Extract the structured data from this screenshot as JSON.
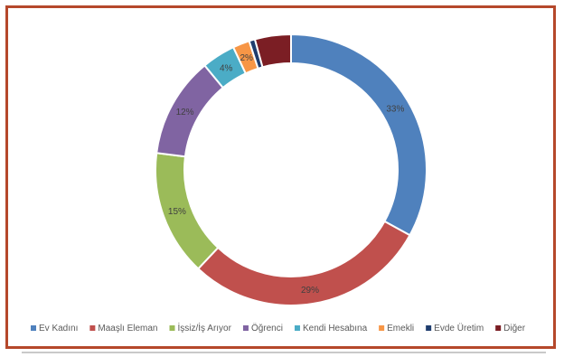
{
  "chart_data": {
    "type": "pie",
    "variant": "doughnut",
    "title": "",
    "legend_position": "bottom",
    "slices": [
      {
        "name": "Ev Kadını",
        "value": 33,
        "label": "33%",
        "color": "#4f81bd"
      },
      {
        "name": "Maaşlı Eleman",
        "value": 29,
        "label": "29%",
        "color": "#c0504d"
      },
      {
        "name": "İşsiz/İş Arıyor",
        "value": 15,
        "label": "15%",
        "color": "#9bbb59"
      },
      {
        "name": "Öğrenci",
        "value": 12,
        "label": "12%",
        "color": "#8064a2"
      },
      {
        "name": "Kendi Hesabına",
        "value": 4,
        "label": "4%",
        "color": "#4bacc6"
      },
      {
        "name": "Emekli",
        "value": 2,
        "label": "2%",
        "color": "#f79646"
      },
      {
        "name": "Evde Üretim",
        "value": 0.7,
        "label": "",
        "color": "#1f3d6e"
      },
      {
        "name": "Diğer",
        "value": 4.3,
        "label": "",
        "color": "#7b1e24"
      }
    ]
  },
  "colors": {
    "frame_border": "#b5482b"
  }
}
